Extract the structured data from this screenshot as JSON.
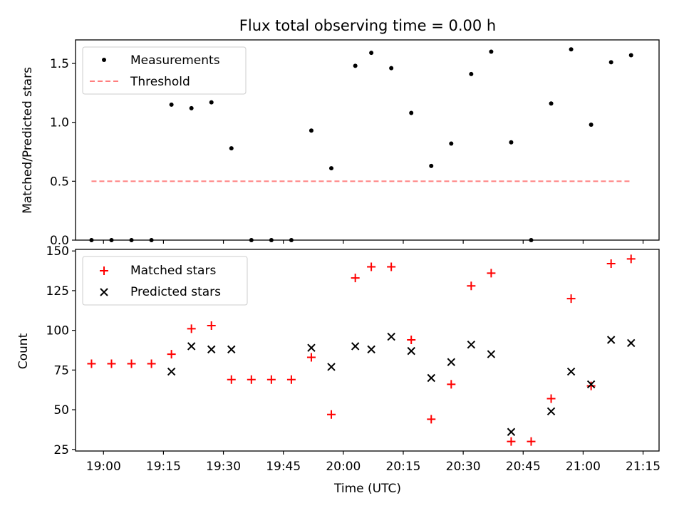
{
  "chart_data": [
    {
      "type": "scatter",
      "title": "Flux total observing time = 0.00 h",
      "xlabel": "",
      "ylabel": "Matched/Predicted stars",
      "xlim": [
        "18:53",
        "21:19"
      ],
      "ylim": [
        0,
        1.7
      ],
      "yticks": [
        0.0,
        0.5,
        1.0,
        1.5
      ],
      "ytick_labels": [
        "0.0",
        "0.5",
        "1.0",
        "1.5"
      ],
      "grid": false,
      "legend_position": "upper left",
      "series": [
        {
          "name": "Measurements",
          "marker": "dot",
          "color": "#000000",
          "points": [
            [
              "18:57",
              0.0
            ],
            [
              "19:02",
              0.0
            ],
            [
              "19:07",
              0.0
            ],
            [
              "19:12",
              0.0
            ],
            [
              "19:17",
              1.15
            ],
            [
              "19:22",
              1.12
            ],
            [
              "19:27",
              1.17
            ],
            [
              "19:32",
              0.78
            ],
            [
              "19:37",
              0.0
            ],
            [
              "19:42",
              0.0
            ],
            [
              "19:47",
              0.0
            ],
            [
              "19:52",
              0.93
            ],
            [
              "19:57",
              0.61
            ],
            [
              "20:03",
              1.48
            ],
            [
              "20:07",
              1.59
            ],
            [
              "20:12",
              1.46
            ],
            [
              "20:17",
              1.08
            ],
            [
              "20:22",
              0.63
            ],
            [
              "20:27",
              0.82
            ],
            [
              "20:32",
              1.41
            ],
            [
              "20:37",
              1.6
            ],
            [
              "20:42",
              0.83
            ],
            [
              "20:47",
              0.0
            ],
            [
              "20:52",
              1.16
            ],
            [
              "20:57",
              1.62
            ],
            [
              "21:02",
              0.98
            ],
            [
              "21:07",
              1.51
            ],
            [
              "21:12",
              1.57
            ]
          ]
        },
        {
          "name": "Threshold",
          "line": "dashed",
          "color": "#ff7f7f",
          "points": [
            [
              "18:57",
              0.5
            ],
            [
              "21:12",
              0.5
            ]
          ]
        }
      ]
    },
    {
      "type": "scatter",
      "title": "",
      "xlabel": "Time (UTC)",
      "ylabel": "Count",
      "xlim": [
        "18:53",
        "21:19"
      ],
      "xticks": [
        "19:00",
        "19:15",
        "19:30",
        "19:45",
        "20:00",
        "20:15",
        "20:30",
        "20:45",
        "21:00",
        "21:15"
      ],
      "ylim": [
        24,
        151
      ],
      "yticks": [
        25,
        50,
        75,
        100,
        125,
        150
      ],
      "grid": false,
      "legend_position": "upper left",
      "series": [
        {
          "name": "Matched stars",
          "marker": "plus",
          "color": "#ff0000",
          "points": [
            [
              "18:57",
              79
            ],
            [
              "19:02",
              79
            ],
            [
              "19:07",
              79
            ],
            [
              "19:12",
              79
            ],
            [
              "19:17",
              85
            ],
            [
              "19:22",
              101
            ],
            [
              "19:27",
              103
            ],
            [
              "19:32",
              69
            ],
            [
              "19:37",
              69
            ],
            [
              "19:42",
              69
            ],
            [
              "19:47",
              69
            ],
            [
              "19:52",
              83
            ],
            [
              "19:57",
              47
            ],
            [
              "20:03",
              133
            ],
            [
              "20:07",
              140
            ],
            [
              "20:12",
              140
            ],
            [
              "20:17",
              94
            ],
            [
              "20:22",
              44
            ],
            [
              "20:27",
              66
            ],
            [
              "20:32",
              128
            ],
            [
              "20:37",
              136
            ],
            [
              "20:42",
              30
            ],
            [
              "20:47",
              30
            ],
            [
              "20:52",
              57
            ],
            [
              "20:57",
              120
            ],
            [
              "21:02",
              65
            ],
            [
              "21:07",
              142
            ],
            [
              "21:12",
              145
            ]
          ]
        },
        {
          "name": "Predicted stars",
          "marker": "x",
          "color": "#000000",
          "points": [
            [
              "19:17",
              74
            ],
            [
              "19:22",
              90
            ],
            [
              "19:27",
              88
            ],
            [
              "19:32",
              88
            ],
            [
              "19:52",
              89
            ],
            [
              "19:57",
              77
            ],
            [
              "20:03",
              90
            ],
            [
              "20:07",
              88
            ],
            [
              "20:12",
              96
            ],
            [
              "20:17",
              87
            ],
            [
              "20:22",
              70
            ],
            [
              "20:27",
              80
            ],
            [
              "20:32",
              91
            ],
            [
              "20:37",
              85
            ],
            [
              "20:42",
              36
            ],
            [
              "20:52",
              49
            ],
            [
              "20:57",
              74
            ],
            [
              "21:02",
              66
            ],
            [
              "21:07",
              94
            ],
            [
              "21:12",
              92
            ]
          ]
        }
      ]
    }
  ]
}
